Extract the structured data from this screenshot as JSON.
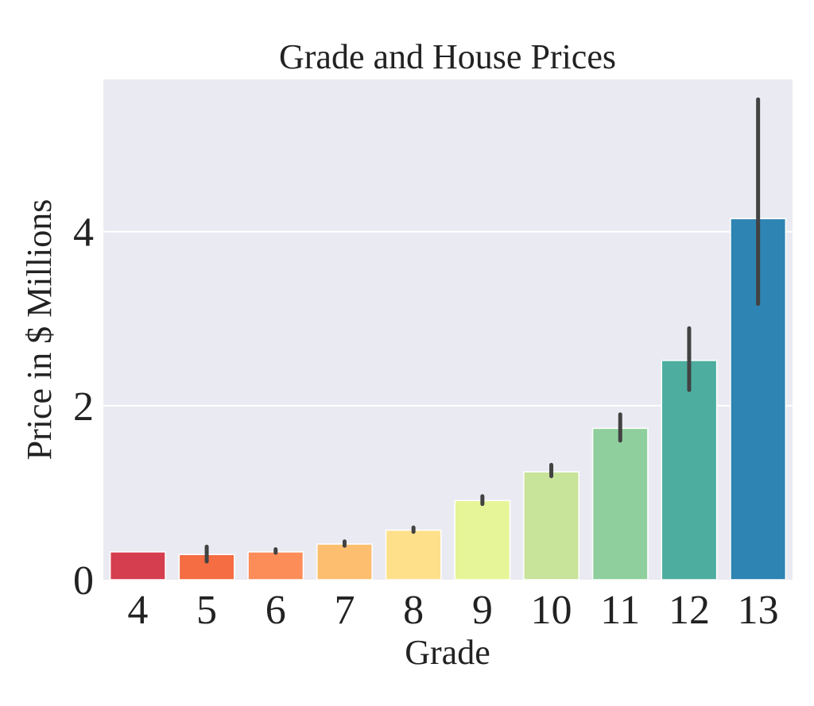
{
  "chart_data": {
    "type": "bar",
    "title": "Grade and House Prices",
    "xlabel": "Grade",
    "ylabel": "Price in $ Millions",
    "categories": [
      "4",
      "5",
      "6",
      "7",
      "8",
      "9",
      "10",
      "11",
      "12",
      "13"
    ],
    "values": [
      0.32,
      0.29,
      0.32,
      0.41,
      0.57,
      0.91,
      1.24,
      1.74,
      2.52,
      4.15
    ],
    "error_low": [
      0.32,
      0.21,
      0.31,
      0.39,
      0.55,
      0.87,
      1.19,
      1.6,
      2.18,
      3.17
    ],
    "error_high": [
      0.32,
      0.38,
      0.35,
      0.44,
      0.6,
      0.96,
      1.32,
      1.9,
      2.89,
      5.52
    ],
    "ylim": [
      0,
      5.75
    ],
    "yticks": [
      "0",
      "2",
      "4"
    ],
    "ytick_values": [
      0,
      2,
      4
    ],
    "grid": true,
    "colors": {
      "background": "#eaeaf2",
      "grid": "#ffffff",
      "errorbar": "#424242",
      "bars": [
        "#d53e4f",
        "#f46d43",
        "#fc8d59",
        "#fdbe6f",
        "#fee08b",
        "#e6f598",
        "#c8e39a",
        "#8fcf9d",
        "#4daea0",
        "#2e84b2"
      ]
    }
  }
}
